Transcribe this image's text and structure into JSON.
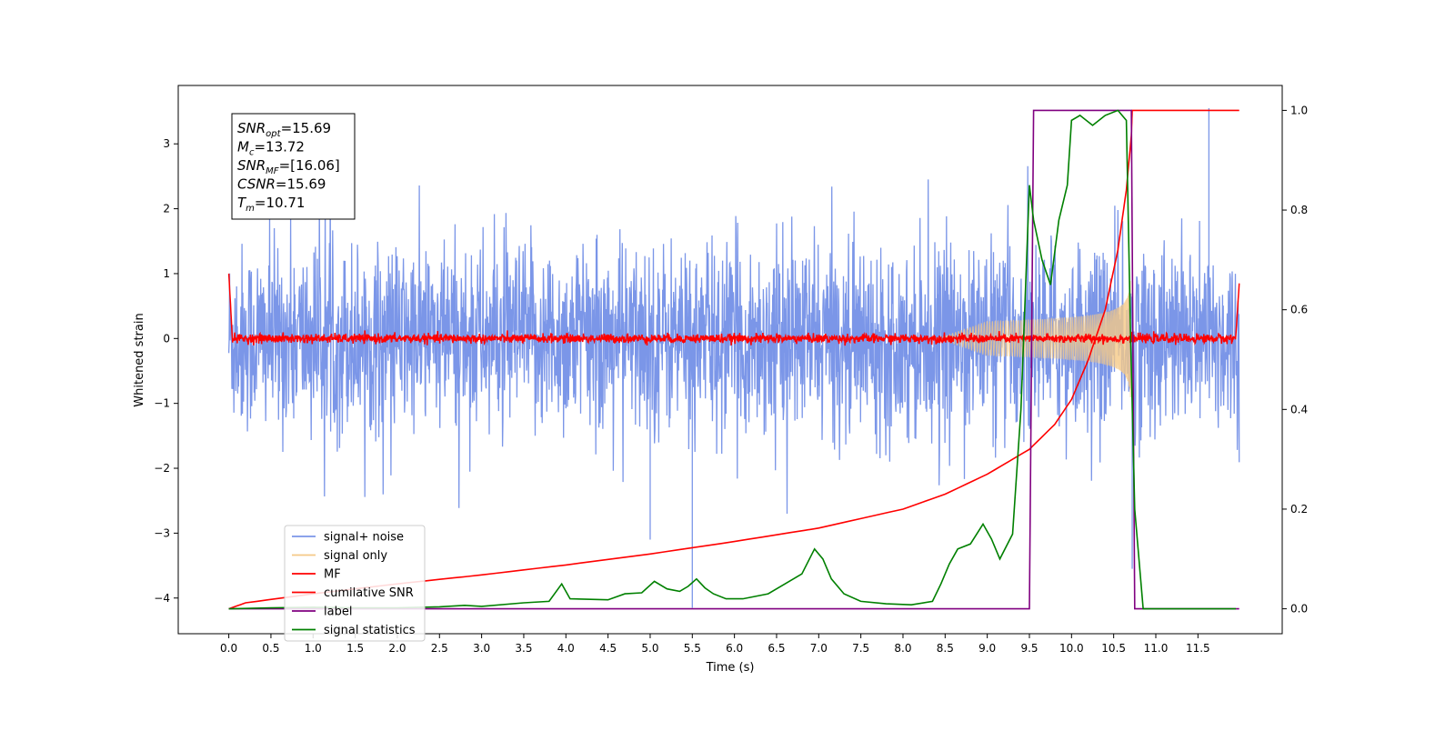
{
  "chart_data": {
    "type": "line",
    "title": "",
    "xlabel": "Time (s)",
    "ylabel": "Whitened strain",
    "xlim": [
      -0.6,
      12.5
    ],
    "ylim": [
      -4.55,
      3.9
    ],
    "y2lim": [
      -0.05,
      1.05
    ],
    "x_ticks": [
      0.0,
      0.5,
      1.0,
      1.5,
      2.0,
      2.5,
      3.0,
      3.5,
      4.0,
      4.5,
      5.0,
      5.5,
      6.0,
      6.5,
      7.0,
      7.5,
      8.0,
      8.5,
      9.0,
      9.5,
      10.0,
      10.5,
      11.0,
      11.5
    ],
    "x_tick_labels": [
      "0.0",
      "0.5",
      "1.0",
      "1.5",
      "2.0",
      "2.5",
      "3.0",
      "3.5",
      "4.0",
      "4.5",
      "5.0",
      "5.5",
      "6.0",
      "6.5",
      "7.0",
      "7.5",
      "8.0",
      "8.5",
      "9.0",
      "9.5",
      "10.0",
      "10.5",
      "11.0",
      "11.5"
    ],
    "y_ticks": [
      -4,
      -3,
      -2,
      -1,
      0,
      1,
      2,
      3
    ],
    "y_tick_labels": [
      "−4",
      "−3",
      "−2",
      "−1",
      "0",
      "1",
      "2",
      "3"
    ],
    "y2_ticks": [
      0.0,
      0.2,
      0.4,
      0.6,
      0.8,
      1.0
    ],
    "y2_tick_labels": [
      "0.0",
      "0.2",
      "0.4",
      "0.6",
      "0.8",
      "1.0"
    ],
    "grid": false,
    "legend_position": "lower-left",
    "annotation": {
      "lines": [
        {
          "base": "SNR",
          "sub": "opt",
          "value": "=15.69"
        },
        {
          "base": "M",
          "sub": "c",
          "value": "=13.72"
        },
        {
          "base": "SNR",
          "sub": "MF",
          "value": "=[16.06]"
        },
        {
          "base": "CSNR",
          "sub": "",
          "value": "=15.69"
        },
        {
          "base": "T",
          "sub": "m",
          "value": "=10.71"
        }
      ]
    },
    "series": [
      {
        "name": "signal+ noise",
        "color": "#7b96e8",
        "axis": "left",
        "style": "noise",
        "x_range": [
          0.0,
          11.99
        ],
        "envelope": 1.9,
        "note_spikes": [
          [
            5.5,
            -4.15
          ],
          [
            11.63,
            3.55
          ],
          [
            5.0,
            -3.1
          ],
          [
            10.72,
            -3.55
          ]
        ]
      },
      {
        "name": "signal only",
        "color": "#f5c987",
        "axis": "left",
        "style": "chirp",
        "x_range": [
          0.0,
          10.71
        ],
        "amplitude_at_end": 1.0
      },
      {
        "name": "MF",
        "color": "#ff0000",
        "axis": "left",
        "style": "mf",
        "x_range": [
          0.0,
          11.99
        ],
        "values": {
          "x": [
            0.0,
            0.04,
            11.95,
            11.99
          ],
          "y": [
            1.0,
            0.05,
            0.05,
            0.85
          ]
        }
      },
      {
        "name": "cumilative SNR",
        "color": "#ff0000",
        "axis": "right",
        "x": [
          0.0,
          0.2,
          1.0,
          2.0,
          3.0,
          4.0,
          5.0,
          6.0,
          7.0,
          8.0,
          8.5,
          9.0,
          9.5,
          9.8,
          10.0,
          10.2,
          10.4,
          10.55,
          10.65,
          10.71,
          10.72,
          11.99
        ],
        "values": [
          0.0,
          0.012,
          0.03,
          0.05,
          0.068,
          0.088,
          0.11,
          0.135,
          0.162,
          0.2,
          0.23,
          0.27,
          0.32,
          0.37,
          0.42,
          0.5,
          0.6,
          0.72,
          0.84,
          0.95,
          1.0,
          1.0
        ]
      },
      {
        "name": "label",
        "color": "#800080",
        "axis": "right",
        "x": [
          0.0,
          9.5,
          9.55,
          10.71,
          10.75,
          11.99
        ],
        "values": [
          0.0,
          0.0,
          1.0,
          1.0,
          0.0,
          0.0
        ]
      },
      {
        "name": "signal statistics",
        "color": "#008000",
        "axis": "right",
        "x": [
          0.0,
          0.5,
          1.0,
          1.5,
          2.0,
          2.5,
          2.8,
          3.0,
          3.5,
          3.8,
          3.95,
          4.05,
          4.5,
          4.7,
          4.9,
          5.05,
          5.2,
          5.35,
          5.45,
          5.55,
          5.65,
          5.75,
          5.9,
          6.1,
          6.4,
          6.6,
          6.8,
          6.95,
          7.05,
          7.15,
          7.3,
          7.5,
          7.8,
          8.1,
          8.35,
          8.45,
          8.55,
          8.65,
          8.8,
          8.95,
          9.05,
          9.15,
          9.3,
          9.4,
          9.5,
          9.55,
          9.65,
          9.75,
          9.85,
          9.95,
          10.0,
          10.1,
          10.25,
          10.4,
          10.55,
          10.65,
          10.7,
          10.75,
          10.85,
          11.0,
          11.5,
          11.95
        ],
        "values": [
          0.0,
          0.002,
          0.003,
          0.002,
          0.002,
          0.004,
          0.007,
          0.005,
          0.012,
          0.015,
          0.05,
          0.02,
          0.018,
          0.03,
          0.032,
          0.055,
          0.04,
          0.035,
          0.045,
          0.06,
          0.042,
          0.03,
          0.02,
          0.02,
          0.03,
          0.05,
          0.07,
          0.12,
          0.1,
          0.06,
          0.03,
          0.015,
          0.01,
          0.008,
          0.015,
          0.05,
          0.09,
          0.12,
          0.13,
          0.17,
          0.14,
          0.1,
          0.15,
          0.4,
          0.85,
          0.78,
          0.7,
          0.65,
          0.78,
          0.85,
          0.98,
          0.99,
          0.97,
          0.99,
          1.0,
          0.98,
          0.55,
          0.2,
          0.0,
          0.0,
          0.0,
          0.0
        ]
      }
    ]
  }
}
